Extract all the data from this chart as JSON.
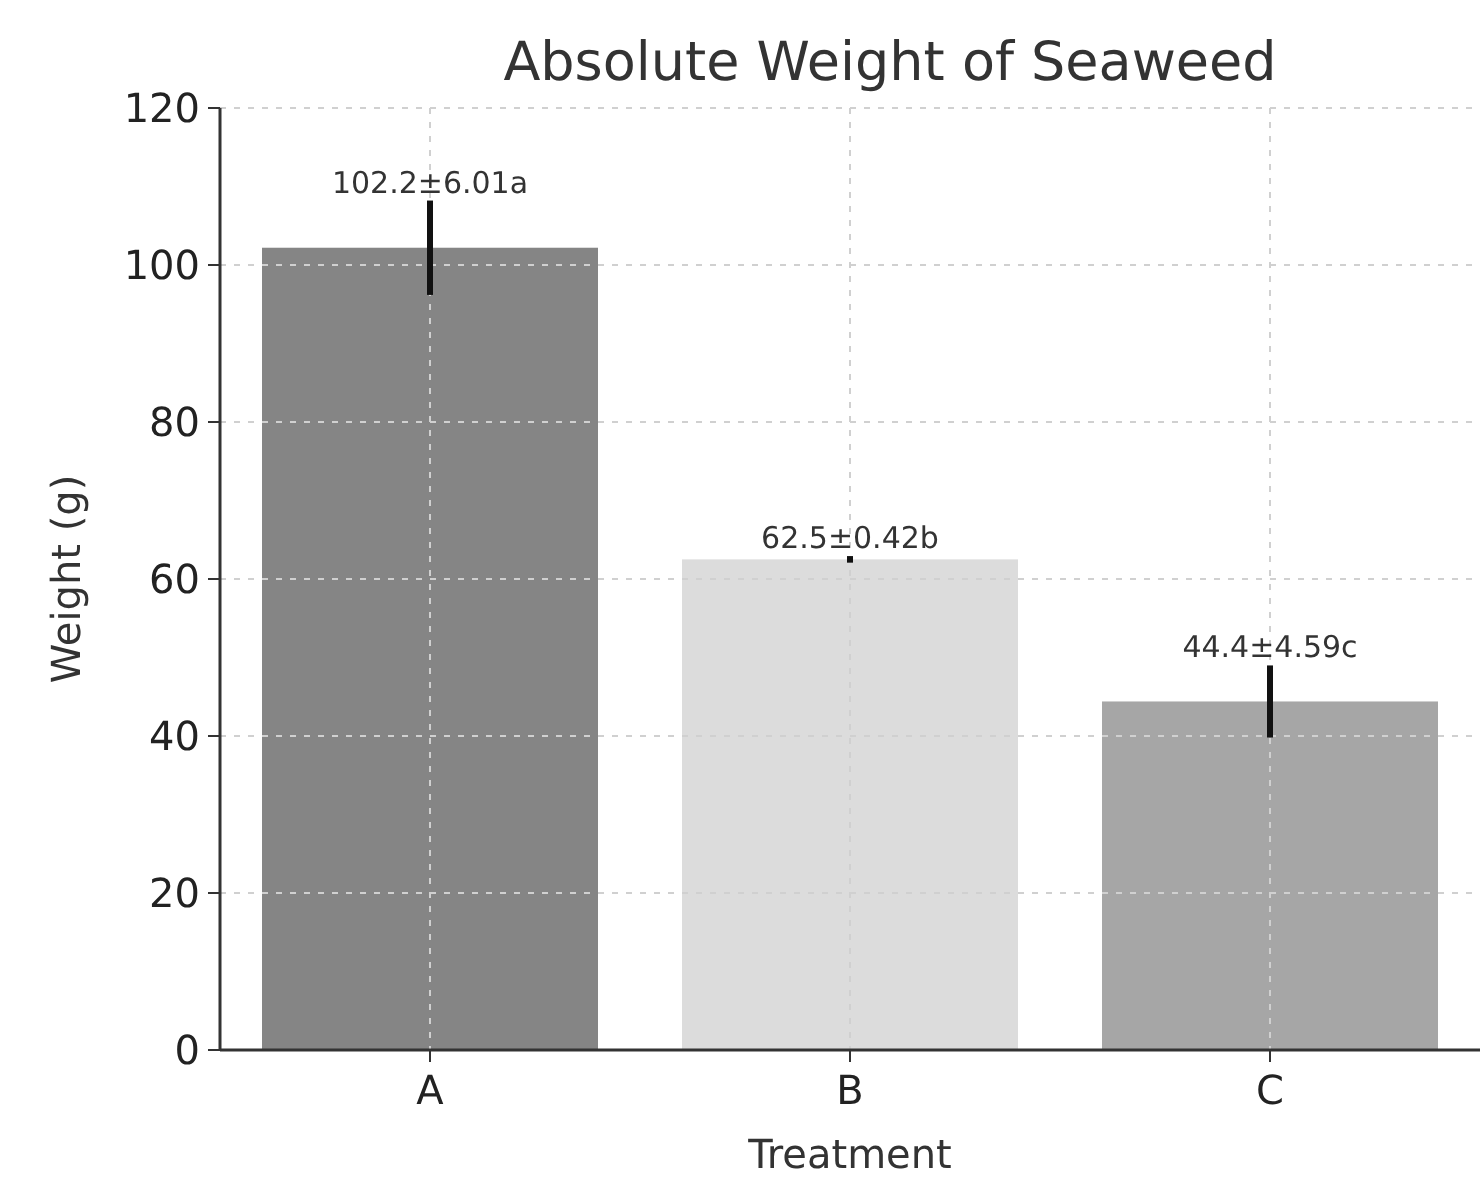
{
  "chart_data": {
    "type": "bar",
    "title": "Absolute Weight of Seaweed",
    "xlabel": "Treatment",
    "ylabel": "Weight (g)",
    "categories": [
      "A",
      "B",
      "C"
    ],
    "values": [
      102.2,
      62.5,
      44.4
    ],
    "errors": [
      6.01,
      0.42,
      4.59
    ],
    "value_labels": [
      "102.2±6.01a",
      "62.5±0.42b",
      "44.4±4.59c"
    ],
    "colors": [
      "#858585",
      "#dcdcdc",
      "#a6a6a6"
    ],
    "ylim": [
      0,
      120
    ],
    "yticks": [
      0,
      20,
      40,
      60,
      80,
      100,
      120
    ],
    "grid": true
  }
}
